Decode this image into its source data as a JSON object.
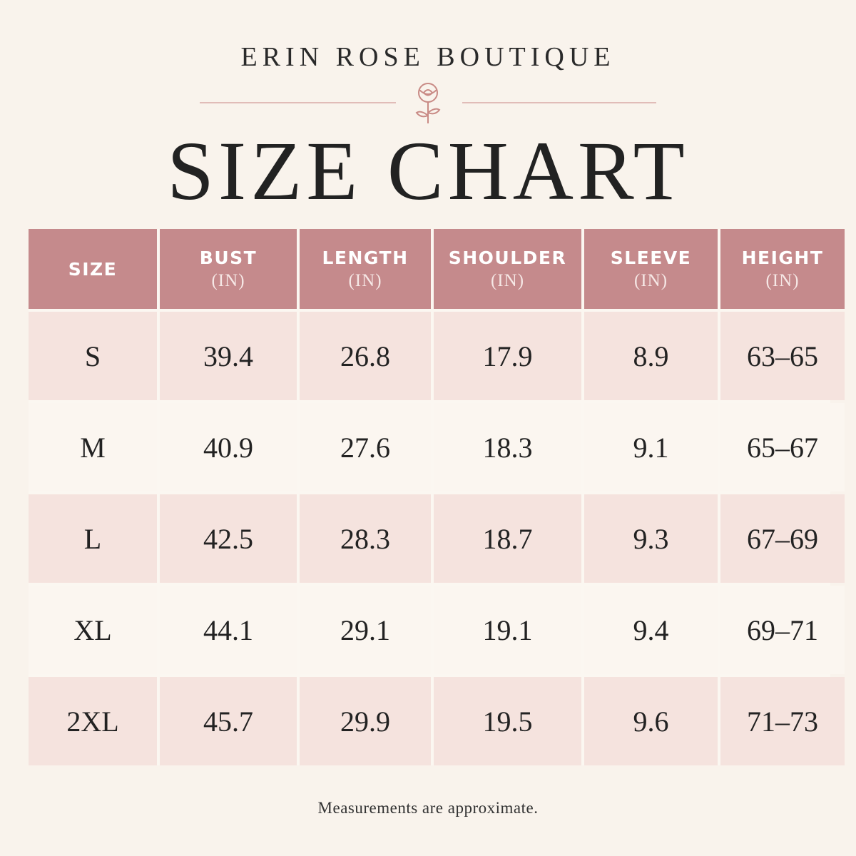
{
  "header": {
    "brand": "ERIN ROSE BOUTIQUE",
    "title": "SIZE CHART"
  },
  "table": {
    "columns": [
      {
        "name": "SIZE"
      },
      {
        "name": "BUST",
        "unit": "(IN)"
      },
      {
        "name": "LENGTH",
        "unit": "(IN)"
      },
      {
        "name": "SHOULDER",
        "unit": "(IN)"
      },
      {
        "name": "SLEEVE",
        "unit": "(IN)"
      },
      {
        "name": "HEIGHT",
        "unit": "(IN)"
      }
    ],
    "rows": [
      [
        "S",
        "39.4",
        "26.8",
        "17.9",
        "8.9",
        "63–65"
      ],
      [
        "M",
        "40.9",
        "27.6",
        "18.3",
        "9.1",
        "65–67"
      ],
      [
        "L",
        "42.5",
        "28.3",
        "18.7",
        "9.3",
        "67–69"
      ],
      [
        "XL",
        "44.1",
        "29.1",
        "19.1",
        "9.4",
        "69–71"
      ],
      [
        "2XL",
        "45.7",
        "29.9",
        "19.5",
        "9.6",
        "71–73"
      ]
    ]
  },
  "footer": {
    "note": "Measurements are approximate."
  }
}
